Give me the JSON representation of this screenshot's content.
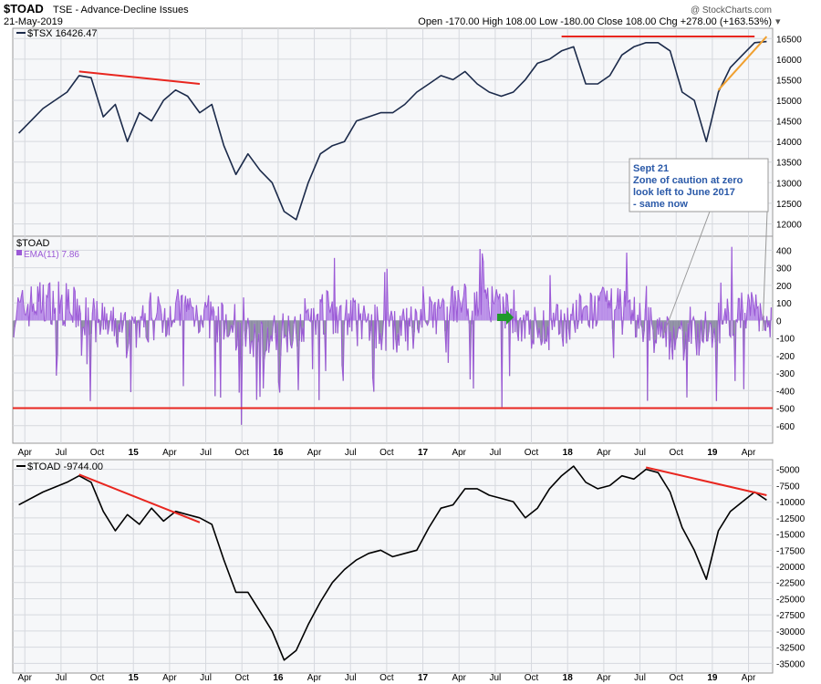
{
  "header": {
    "symbol": "$TOAD",
    "description": "TSE - Advance-Decline Issues",
    "exchange": "TSE",
    "date": "21-May-2019",
    "ohlc_line": "Open -170.00   High 108.00   Low -180.00   Close 108.00   Chg +278.00 (+163.53%)",
    "watermark": "@ StockCharts.com",
    "colors": {
      "accent": "#2a59a8"
    }
  },
  "chart_data": [
    {
      "type": "line",
      "panel": "top",
      "title": "$TSX 16426.47",
      "series": [
        {
          "name": "$TSX",
          "color": "#1b2a4a",
          "x": [
            "2014-03",
            "2014-05",
            "2014-07",
            "2014-08",
            "2014-09",
            "2014-10",
            "2014-11",
            "2014-12",
            "2015-01",
            "2015-02",
            "2015-03",
            "2015-04",
            "2015-05",
            "2015-06",
            "2015-07",
            "2015-08",
            "2015-09",
            "2015-10",
            "2015-11",
            "2015-12",
            "2016-01",
            "2016-02",
            "2016-03",
            "2016-04",
            "2016-05",
            "2016-06",
            "2016-07",
            "2016-08",
            "2016-09",
            "2016-10",
            "2016-11",
            "2016-12",
            "2017-01",
            "2017-02",
            "2017-03",
            "2017-04",
            "2017-05",
            "2017-06",
            "2017-07",
            "2017-08",
            "2017-09",
            "2017-10",
            "2017-11",
            "2017-12",
            "2018-01",
            "2018-02",
            "2018-03",
            "2018-04",
            "2018-05",
            "2018-06",
            "2018-07",
            "2018-08",
            "2018-09",
            "2018-10",
            "2018-11",
            "2018-12",
            "2019-01",
            "2019-02",
            "2019-03",
            "2019-04",
            "2019-05"
          ],
          "values": [
            14200,
            14800,
            15200,
            15600,
            15550,
            14600,
            14900,
            14000,
            14700,
            14500,
            15000,
            15250,
            15100,
            14700,
            14900,
            13900,
            13200,
            13700,
            13300,
            13000,
            12300,
            12100,
            13000,
            13700,
            13900,
            14000,
            14500,
            14600,
            14700,
            14700,
            14900,
            15200,
            15400,
            15600,
            15500,
            15700,
            15400,
            15200,
            15100,
            15200,
            15500,
            15900,
            16000,
            16200,
            16300,
            15400,
            15400,
            15600,
            16100,
            16300,
            16400,
            16400,
            16200,
            15200,
            15000,
            14000,
            15200,
            15800,
            16100,
            16400,
            16426
          ]
        }
      ],
      "trendlines": [
        {
          "color": "#e8261f",
          "x": [
            "2014-08",
            "2015-06"
          ],
          "y": [
            15700,
            15400
          ]
        },
        {
          "color": "#e8261f",
          "x": [
            "2017-12",
            "2019-04"
          ],
          "y": [
            16550,
            16550
          ]
        },
        {
          "color": "#f0a030",
          "x": [
            "2019-01",
            "2019-05"
          ],
          "y": [
            15250,
            16550
          ]
        }
      ],
      "ytick_labels": [
        "12000",
        "12500",
        "13000",
        "13500",
        "14000",
        "14500",
        "15000",
        "15500",
        "16000",
        "16500"
      ],
      "ylim": [
        11700,
        16750
      ]
    },
    {
      "type": "area",
      "panel": "middle",
      "title": "$TOAD",
      "legend": "EMA(11) 7.86",
      "series": [
        {
          "name": "EMA(11)",
          "color": "#9b59d6"
        }
      ],
      "ylim": [
        -700,
        480
      ],
      "ytick_labels": [
        "-600",
        "-500",
        "-400",
        "-300",
        "-200",
        "-100",
        "0",
        "100",
        "200",
        "300",
        "400"
      ],
      "reference_line": -500,
      "annotation": {
        "lines": [
          "Sept 21",
          "Zone of caution at zero",
          "look left to June 2017",
          "- same now"
        ],
        "color": "#2a59a8"
      },
      "xtick_labels": [
        "Apr",
        "Jul",
        "Oct",
        "15",
        "Apr",
        "Jul",
        "Oct",
        "16",
        "Apr",
        "Jul",
        "Oct",
        "17",
        "Apr",
        "Jul",
        "Oct",
        "18",
        "Apr",
        "Jul",
        "Oct",
        "19",
        "Apr"
      ]
    },
    {
      "type": "line",
      "panel": "bottom",
      "title": "$TOAD -9744.00",
      "series": [
        {
          "name": "$TOAD",
          "color": "#000000",
          "x": [
            "2014-03",
            "2014-05",
            "2014-07",
            "2014-08",
            "2014-09",
            "2014-10",
            "2014-11",
            "2014-12",
            "2015-01",
            "2015-02",
            "2015-03",
            "2015-04",
            "2015-05",
            "2015-06",
            "2015-07",
            "2015-08",
            "2015-09",
            "2015-10",
            "2015-11",
            "2015-12",
            "2016-01",
            "2016-02",
            "2016-03",
            "2016-04",
            "2016-05",
            "2016-06",
            "2016-07",
            "2016-08",
            "2016-09",
            "2016-10",
            "2016-11",
            "2016-12",
            "2017-01",
            "2017-02",
            "2017-03",
            "2017-04",
            "2017-05",
            "2017-06",
            "2017-07",
            "2017-08",
            "2017-09",
            "2017-10",
            "2017-11",
            "2017-12",
            "2018-01",
            "2018-02",
            "2018-03",
            "2018-04",
            "2018-05",
            "2018-06",
            "2018-07",
            "2018-08",
            "2018-09",
            "2018-10",
            "2018-11",
            "2018-12",
            "2019-01",
            "2019-02",
            "2019-03",
            "2019-04",
            "2019-05"
          ],
          "values": [
            -10500,
            -8500,
            -7000,
            -6000,
            -7000,
            -11500,
            -14500,
            -12000,
            -13500,
            -11000,
            -13000,
            -11500,
            -12000,
            -12500,
            -13500,
            -19000,
            -24000,
            -24000,
            -27000,
            -30000,
            -34500,
            -33000,
            -29000,
            -25500,
            -22500,
            -20500,
            -19000,
            -18000,
            -17500,
            -18500,
            -18000,
            -17500,
            -14000,
            -11000,
            -10500,
            -8000,
            -8000,
            -9000,
            -9500,
            -10000,
            -12500,
            -11000,
            -8000,
            -6000,
            -4500,
            -7000,
            -8000,
            -7500,
            -6000,
            -6500,
            -5000,
            -5500,
            -8500,
            -14000,
            -17500,
            -22000,
            -14500,
            -11500,
            -10000,
            -8500,
            -9744
          ]
        }
      ],
      "trendlines": [
        {
          "color": "#e8261f",
          "x": [
            "2014-08",
            "2015-06"
          ],
          "y": [
            -5800,
            -13200
          ]
        },
        {
          "color": "#e8261f",
          "x": [
            "2018-07",
            "2019-05"
          ],
          "y": [
            -4700,
            -9000
          ]
        }
      ],
      "ytick_labels": [
        "-35000",
        "-32500",
        "-30000",
        "-27500",
        "-25000",
        "-22500",
        "-20000",
        "-17500",
        "-15000",
        "-12500",
        "-10000",
        "-7500",
        "-5000"
      ],
      "ylim": [
        -36500,
        -3500
      ],
      "xtick_labels": [
        "Apr",
        "Jul",
        "Oct",
        "15",
        "Apr",
        "Jul",
        "Oct",
        "16",
        "Apr",
        "Jul",
        "Oct",
        "17",
        "Apr",
        "Jul",
        "Oct",
        "18",
        "Apr",
        "Jul",
        "Oct",
        "19",
        "Apr"
      ]
    }
  ]
}
